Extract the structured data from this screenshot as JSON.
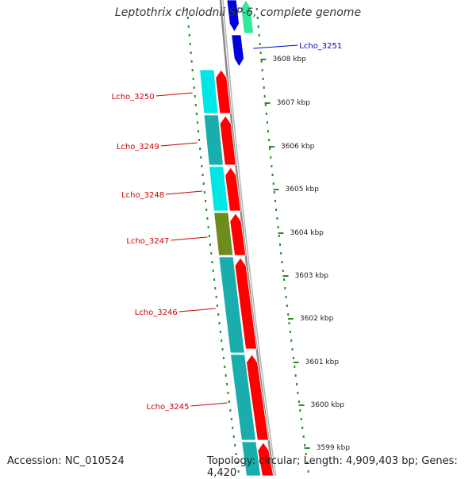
{
  "title": "Leptothrix cholodnii SP-6, complete genome",
  "footer": {
    "accession": "Accession: NC_010524",
    "topology": "Topology: circular; Length: 4,909,403 bp; Genes: 4,420"
  },
  "colors": {
    "backbone": "#8a8a8a",
    "tick": "#2a8a2a",
    "forward_gene": "#ff0000",
    "reverse_cyan": "#00e5e5",
    "reverse_teal": "#1aadad",
    "reverse_olive": "#6e8c1e",
    "blue_gene": "#0000e0",
    "green_gene": "#33e899",
    "label_red": "#cc0000",
    "label_blue": "#0000cc"
  },
  "position_ticks_kbp": [
    "3608 kbp",
    "3607 kbp",
    "3606 kbp",
    "3605 kbp",
    "3604 kbp",
    "3603 kbp",
    "3602 kbp",
    "3601 kbp",
    "3600 kbp",
    "3599 kbp"
  ],
  "gene_labels": [
    {
      "id": "Lcho_3251",
      "color": "blue"
    },
    {
      "id": "Lcho_3250",
      "color": "red"
    },
    {
      "id": "Lcho_3249",
      "color": "red"
    },
    {
      "id": "Lcho_3248",
      "color": "red"
    },
    {
      "id": "Lcho_3247",
      "color": "red"
    },
    {
      "id": "Lcho_3246",
      "color": "red"
    },
    {
      "id": "Lcho_3245",
      "color": "red"
    }
  ]
}
